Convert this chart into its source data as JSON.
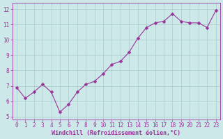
{
  "x": [
    0,
    1,
    2,
    3,
    4,
    5,
    6,
    7,
    8,
    9,
    10,
    11,
    12,
    13,
    14,
    15,
    16,
    17,
    18,
    19,
    20,
    21,
    22,
    23
  ],
  "y": [
    6.9,
    6.2,
    6.6,
    7.1,
    6.6,
    5.3,
    5.8,
    6.6,
    7.1,
    7.3,
    7.8,
    8.4,
    8.6,
    9.2,
    10.1,
    10.8,
    11.1,
    11.2,
    11.7,
    11.2,
    11.1,
    11.1,
    10.8,
    11.9
  ],
  "line_color": "#993399",
  "marker": "D",
  "marker_size": 2.5,
  "bg_color": "#cce8e8",
  "grid_color": "#aacccc",
  "xlabel": "Windchill (Refroidissement éolien,°C)",
  "ylabel": "",
  "xlim": [
    -0.5,
    23.5
  ],
  "ylim": [
    4.8,
    12.4
  ],
  "yticks": [
    5,
    6,
    7,
    8,
    9,
    10,
    11,
    12
  ],
  "xticks": [
    0,
    1,
    2,
    3,
    4,
    5,
    6,
    7,
    8,
    9,
    10,
    11,
    12,
    13,
    14,
    15,
    16,
    17,
    18,
    19,
    20,
    21,
    22,
    23
  ],
  "tick_color": "#993399",
  "tick_fontsize": 5.5,
  "xlabel_fontsize": 6.0,
  "spine_color": "#993399"
}
